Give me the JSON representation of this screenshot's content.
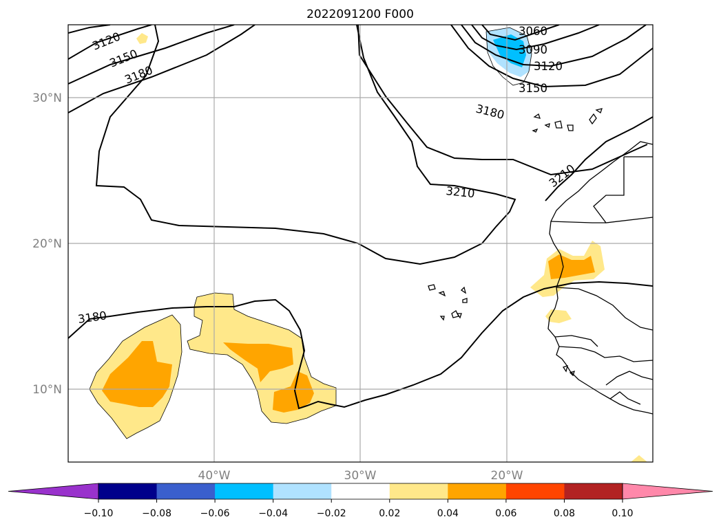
{
  "title": "2022091200 F000",
  "map": {
    "latitude_labels": [
      "30°N",
      "20°N",
      "10°N"
    ],
    "longitude_labels": [
      "40°W",
      "30°W",
      "20°W"
    ],
    "grid": true,
    "contour_levels": [
      "3060",
      "3090",
      "3120",
      "3150",
      "3180",
      "3210"
    ],
    "contour_labels": [
      {
        "text": "3120",
        "group": "northwest"
      },
      {
        "text": "3150",
        "group": "northwest"
      },
      {
        "text": "3180",
        "group": "northwest"
      },
      {
        "text": "3060",
        "group": "northeast"
      },
      {
        "text": "3090",
        "group": "northeast"
      },
      {
        "text": "3120",
        "group": "northeast"
      },
      {
        "text": "3150",
        "group": "northeast"
      },
      {
        "text": "3180",
        "group": "northeast"
      },
      {
        "text": "3210",
        "group": "central"
      },
      {
        "text": "3210",
        "group": "african-coast"
      },
      {
        "text": "3180",
        "group": "southwest"
      }
    ]
  },
  "colorbar": {
    "ticks": [
      "−0.10",
      "−0.08",
      "−0.06",
      "−0.04",
      "−0.02",
      "0.02",
      "0.04",
      "0.06",
      "0.08",
      "0.10"
    ],
    "colors": {
      "under": "#9932CC",
      "bins": [
        "#00008B",
        "#3A5FCD",
        "#00BFFF",
        "#B0E2FF",
        "#FFFFFF",
        "#FFE88A",
        "#FFA500",
        "#FF4500",
        "#B22222"
      ],
      "over": "#FF88AA"
    },
    "extend": "both"
  }
}
